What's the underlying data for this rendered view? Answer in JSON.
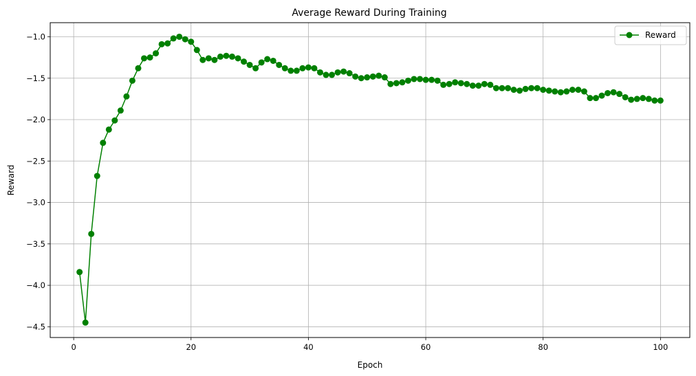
{
  "chart_data": {
    "type": "line",
    "title": "Average Reward During Training",
    "xlabel": "Epoch",
    "ylabel": "Reward",
    "xlim": [
      -4,
      105
    ],
    "ylim": [
      -4.63,
      -0.83
    ],
    "xticks": [
      0,
      20,
      40,
      60,
      80,
      100
    ],
    "xtick_labels": [
      "0",
      "20",
      "40",
      "60",
      "80",
      "100"
    ],
    "yticks": [
      -1.0,
      -1.5,
      -2.0,
      -2.5,
      -3.0,
      -3.5,
      -4.0,
      -4.5
    ],
    "ytick_labels": [
      "−1.0",
      "−1.5",
      "−2.0",
      "−2.5",
      "−3.0",
      "−3.5",
      "−4.0",
      "−4.5"
    ],
    "grid": true,
    "legend_position": "top-right",
    "series": [
      {
        "name": "Reward",
        "color": "#008000",
        "marker": "circle",
        "x": [
          1,
          2,
          3,
          4,
          5,
          6,
          7,
          8,
          9,
          10,
          11,
          12,
          13,
          14,
          15,
          16,
          17,
          18,
          19,
          20,
          21,
          22,
          23,
          24,
          25,
          26,
          27,
          28,
          29,
          30,
          31,
          32,
          33,
          34,
          35,
          36,
          37,
          38,
          39,
          40,
          41,
          42,
          43,
          44,
          45,
          46,
          47,
          48,
          49,
          50,
          51,
          52,
          53,
          54,
          55,
          56,
          57,
          58,
          59,
          60,
          61,
          62,
          63,
          64,
          65,
          66,
          67,
          68,
          69,
          70,
          71,
          72,
          73,
          74,
          75,
          76,
          77,
          78,
          79,
          80,
          81,
          82,
          83,
          84,
          85,
          86,
          87,
          88,
          89,
          90,
          91,
          92,
          93,
          94,
          95,
          96,
          97,
          98,
          99,
          100
        ],
        "values": [
          -3.84,
          -4.45,
          -3.38,
          -2.68,
          -2.28,
          -2.12,
          -2.01,
          -1.89,
          -1.72,
          -1.53,
          -1.38,
          -1.26,
          -1.25,
          -1.2,
          -1.09,
          -1.08,
          -1.02,
          -1.0,
          -1.03,
          -1.06,
          -1.16,
          -1.28,
          -1.26,
          -1.28,
          -1.24,
          -1.23,
          -1.24,
          -1.26,
          -1.3,
          -1.34,
          -1.38,
          -1.31,
          -1.27,
          -1.29,
          -1.34,
          -1.38,
          -1.41,
          -1.41,
          -1.38,
          -1.37,
          -1.38,
          -1.43,
          -1.46,
          -1.46,
          -1.43,
          -1.42,
          -1.44,
          -1.48,
          -1.5,
          -1.49,
          -1.48,
          -1.47,
          -1.49,
          -1.57,
          -1.56,
          -1.55,
          -1.53,
          -1.51,
          -1.51,
          -1.52,
          -1.52,
          -1.53,
          -1.58,
          -1.57,
          -1.55,
          -1.56,
          -1.57,
          -1.59,
          -1.59,
          -1.57,
          -1.58,
          -1.62,
          -1.62,
          -1.62,
          -1.64,
          -1.65,
          -1.63,
          -1.62,
          -1.62,
          -1.64,
          -1.65,
          -1.66,
          -1.67,
          -1.66,
          -1.64,
          -1.64,
          -1.66,
          -1.74,
          -1.74,
          -1.71,
          -1.68,
          -1.67,
          -1.69,
          -1.73,
          -1.76,
          -1.75,
          -1.74,
          -1.75,
          -1.77,
          -1.77
        ]
      }
    ]
  }
}
